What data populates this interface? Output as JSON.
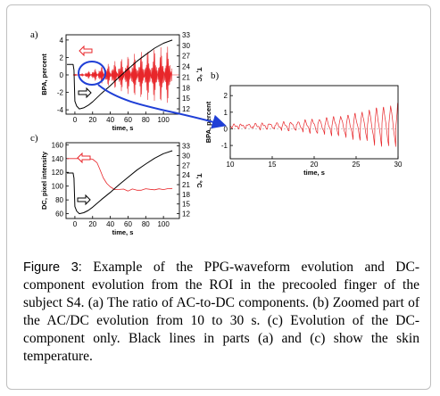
{
  "panel_labels": {
    "a": "a)",
    "b": "b)",
    "c": "c)"
  },
  "caption": {
    "label": "Figure 3:",
    "text": "Example of the PPG-waveform evolution and DC-component evolution from the ROI in the precooled finger of the subject S4. (a) The ratio of AC-to-DC components. (b) Zoomed part of the AC/DC evolution from 10 to 30 s. (c) Evolution of the DC-component only. Black lines in parts (a) and (c) show the skin temperature."
  },
  "colors": {
    "ppg": "#e8262a",
    "temperature": "#000000",
    "highlight": "#1f3fd6"
  },
  "chart_data": [
    {
      "id": "a",
      "type": "line",
      "xlabel": "time, s",
      "ylabel": "BPA, percent",
      "ylabel_right": "T, °C",
      "xlim": [
        -10,
        118
      ],
      "ylim": [
        -4.5,
        4.6
      ],
      "ylim_right": [
        10.5,
        33
      ],
      "xticks": [
        "0",
        "20",
        "40",
        "60",
        "80",
        "100"
      ],
      "yticks": [
        "-4",
        "-2",
        "0",
        "2",
        "4"
      ],
      "yticks_right": [
        "12",
        "15",
        "18",
        "21",
        "24",
        "27",
        "30",
        "33"
      ],
      "series": [
        {
          "role": "ac_dc_ratio",
          "color": "#e8262a",
          "style": "oscillation",
          "amplitude_envelope": [
            [
              -2,
              0.05
            ],
            [
              0,
              0.1
            ],
            [
              8,
              0.15
            ],
            [
              12,
              0.35
            ],
            [
              20,
              0.6
            ],
            [
              30,
              1.0
            ],
            [
              45,
              1.6
            ],
            [
              60,
              2.2
            ],
            [
              80,
              2.8
            ],
            [
              100,
              3.2
            ],
            [
              110,
              3.4
            ]
          ]
        },
        {
          "role": "skin_temperature",
          "color": "#000000",
          "axis": "right",
          "x": [
            -9,
            -2,
            -1,
            0,
            2,
            5,
            10,
            15,
            20,
            30,
            40,
            50,
            60,
            70,
            80,
            90,
            100,
            110
          ],
          "y": [
            24.6,
            24.6,
            23,
            14.2,
            12.8,
            12.0,
            12.3,
            13.0,
            14.0,
            16.4,
            18.6,
            21.0,
            23.3,
            25.5,
            27.4,
            29.2,
            30.6,
            31.5
          ]
        }
      ],
      "annotations": [
        "left-arrow red near ac/dc trace",
        "right-arrow black near temperature trace",
        "blue circle at t≈20 s with arrow to panel b"
      ]
    },
    {
      "id": "b",
      "type": "line",
      "xlabel": "time, s",
      "ylabel": "BPA, percent",
      "xlim": [
        10,
        30
      ],
      "ylim": [
        -1.8,
        2.6
      ],
      "xticks": [
        "10",
        "15",
        "20",
        "25",
        "30"
      ],
      "yticks": [
        "-1",
        "0",
        "1",
        "2"
      ],
      "series": [
        {
          "role": "ac_dc_ratio_zoom",
          "color": "#e8262a",
          "style": "oscillation",
          "period_s": 0.85,
          "amplitude_envelope": [
            [
              10,
              0.1
            ],
            [
              15,
              0.2
            ],
            [
              18,
              0.3
            ],
            [
              20,
              0.45
            ],
            [
              22,
              0.55
            ],
            [
              25,
              0.8
            ],
            [
              27,
              1.1
            ],
            [
              29,
              1.3
            ],
            [
              30,
              1.4
            ]
          ]
        }
      ]
    },
    {
      "id": "c",
      "type": "line",
      "xlabel": "time, s",
      "ylabel": "DC, pixel intensity",
      "ylabel_right": "T, °C",
      "xlim": [
        -10,
        118
      ],
      "ylim": [
        53,
        163
      ],
      "ylim_right": [
        10.5,
        34
      ],
      "xticks": [
        "0",
        "20",
        "40",
        "60",
        "80",
        "100"
      ],
      "yticks": [
        "60",
        "80",
        "100",
        "120",
        "140",
        "160"
      ],
      "yticks_right": [
        "12",
        "15",
        "18",
        "21",
        "24",
        "27",
        "30",
        "33"
      ],
      "series": [
        {
          "role": "dc_component",
          "color": "#e8262a",
          "x": [
            -9,
            0,
            10,
            15,
            20,
            25,
            28,
            32,
            36,
            40,
            45,
            50,
            55,
            60,
            65,
            70,
            75,
            80,
            85,
            90,
            95,
            100,
            105,
            110
          ],
          "y": [
            140,
            140,
            140,
            140,
            139,
            134,
            125,
            112,
            104,
            99,
            96,
            95,
            95,
            94,
            95,
            94,
            95,
            95,
            96,
            95,
            95,
            96,
            96,
            96
          ]
        },
        {
          "role": "skin_temperature",
          "color": "#000000",
          "axis": "right",
          "x": [
            -9,
            -2,
            -1,
            0,
            2,
            5,
            10,
            15,
            20,
            30,
            40,
            50,
            60,
            70,
            80,
            90,
            100,
            110
          ],
          "y": [
            24.6,
            24.6,
            23,
            14.2,
            12.8,
            12.0,
            12.3,
            13.0,
            14.0,
            16.4,
            18.6,
            21.0,
            23.3,
            25.5,
            27.4,
            29.2,
            30.6,
            31.5
          ]
        }
      ],
      "annotations": [
        "left-arrow red near dc trace",
        "right-arrow black near temperature trace"
      ]
    }
  ]
}
